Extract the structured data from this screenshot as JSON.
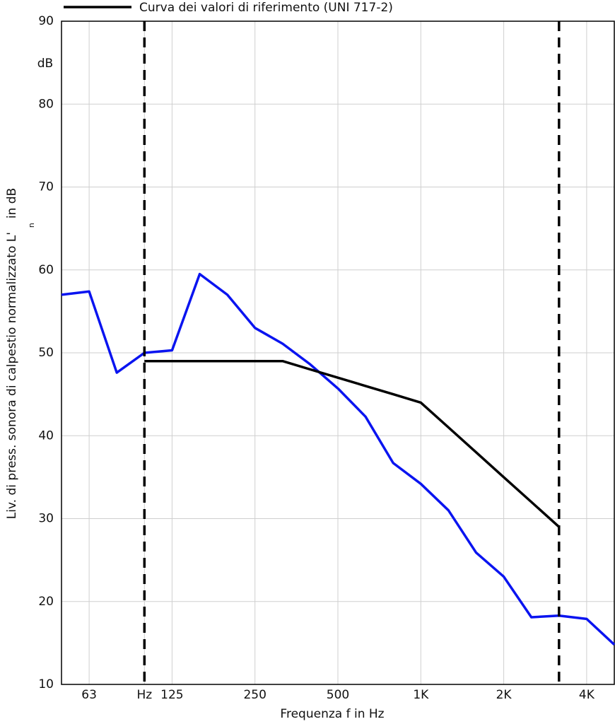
{
  "chart_data": {
    "type": "line",
    "xlabel": "Frequenza f in Hz",
    "ylabel": "Liv. di press. sonora di calpestio normalizzato L'",
    "ylabel_sub": "n",
    "ylabel_end": "in dB",
    "yunit": "dB",
    "categories": [
      null,
      "63",
      null,
      "Hz",
      "125",
      null,
      null,
      "250",
      null,
      null,
      "500",
      null,
      null,
      "1K",
      null,
      null,
      "2K",
      null,
      null,
      "4K",
      null
    ],
    "series": [
      {
        "color": "#0a14f0",
        "values": [
          57,
          57.4,
          47.6,
          50,
          50.3,
          59.5,
          57,
          53,
          51.1,
          48.6,
          45.7,
          42.3,
          36.7,
          34.2,
          31,
          25.9,
          23,
          18.1,
          18.3,
          17.9,
          14.8
        ]
      },
      {
        "name": "Curva dei valori di riferimento (UNI 717-2)",
        "color": "#000000",
        "values": [
          null,
          null,
          null,
          49,
          49,
          49,
          49,
          49,
          49,
          48,
          47,
          46,
          45,
          44,
          41,
          38,
          35,
          32,
          29,
          null,
          null
        ]
      }
    ],
    "ylim": [
      10,
      90
    ],
    "yticks": [
      10,
      20,
      30,
      40,
      50,
      60,
      70,
      80,
      90
    ],
    "grid": true
  }
}
